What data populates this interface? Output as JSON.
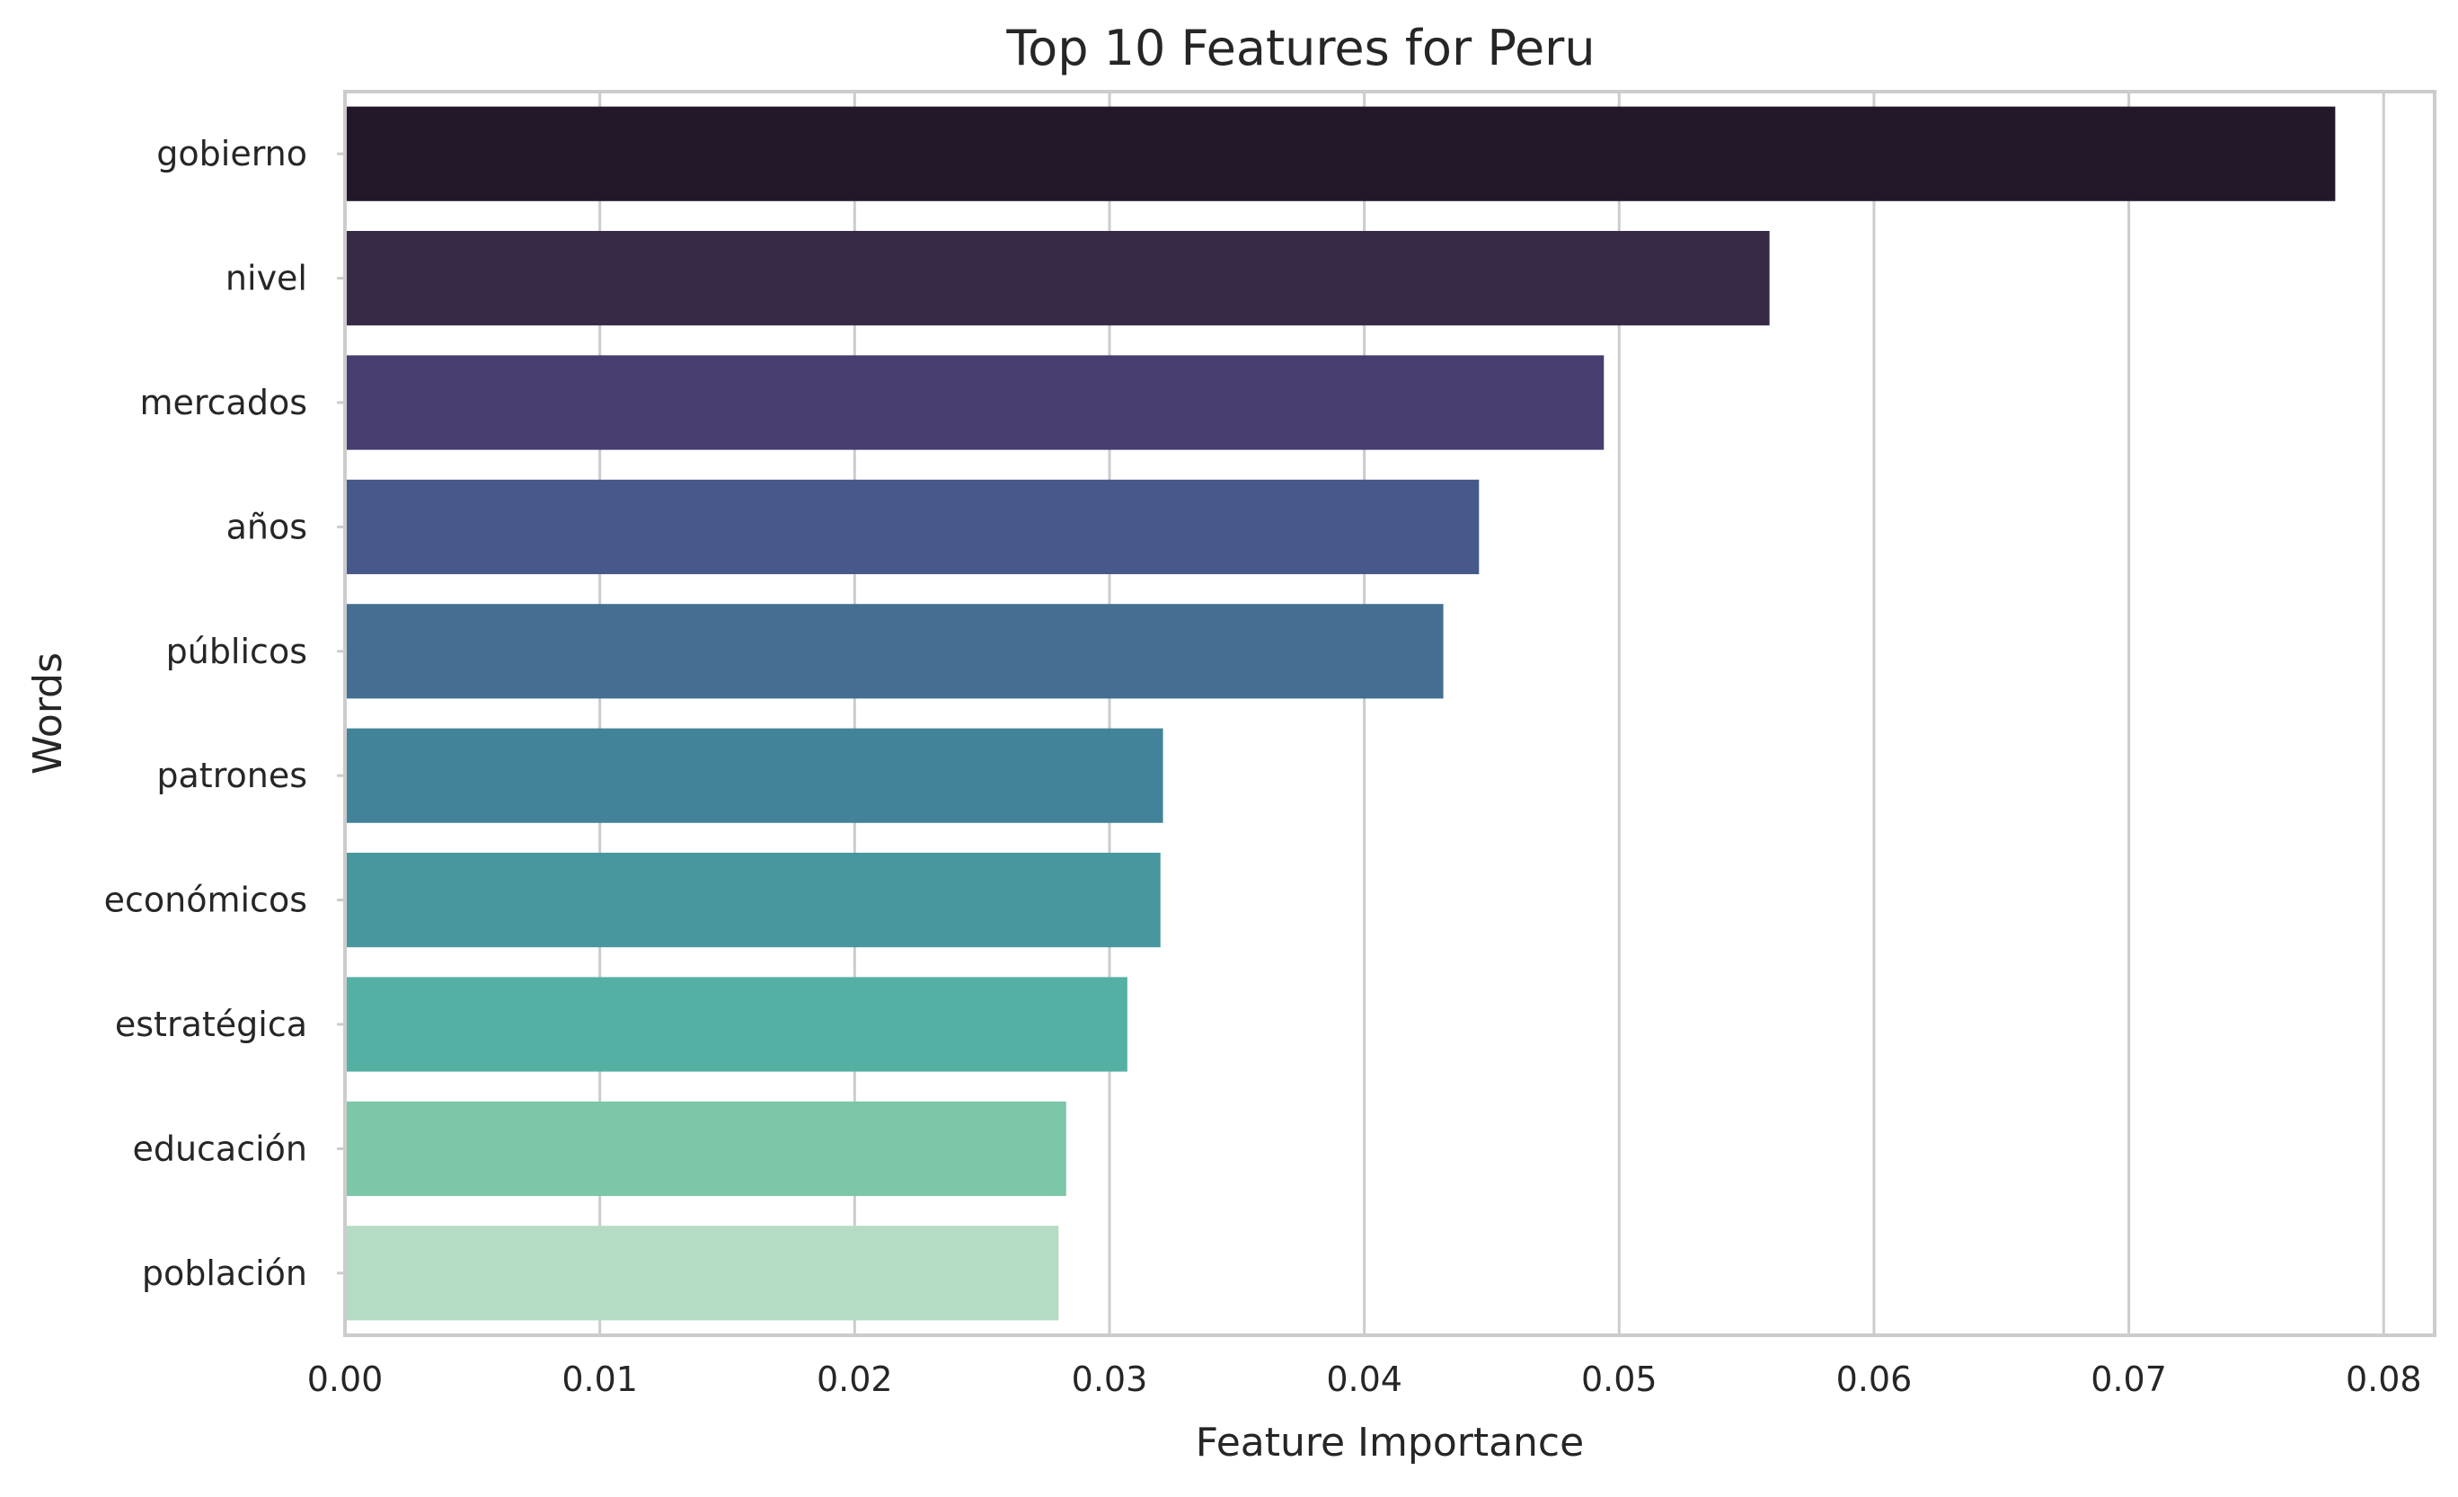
{
  "chart_data": {
    "type": "bar",
    "orientation": "horizontal",
    "title": "Top 10 Features for Peru",
    "xlabel": "Feature Importance",
    "ylabel": "Words",
    "categories": [
      "gobierno",
      "nivel",
      "mercados",
      "años",
      "públicos",
      "patrones",
      "económicos",
      "estratégica",
      "educación",
      "población"
    ],
    "values": [
      0.0781,
      0.0559,
      0.0494,
      0.0445,
      0.0431,
      0.0321,
      0.032,
      0.0307,
      0.0283,
      0.028
    ],
    "colors": [
      "#231829",
      "#372a47",
      "#473d6f",
      "#47598a",
      "#446e92",
      "#428399",
      "#47979d",
      "#55b0a4",
      "#7bc7a8",
      "#b3dcc3"
    ],
    "xlim": [
      0,
      0.082
    ],
    "xticks": [
      0.0,
      0.01,
      0.02,
      0.03,
      0.04,
      0.05,
      0.06,
      0.07,
      0.08
    ],
    "xtick_labels": [
      "0.00",
      "0.01",
      "0.02",
      "0.03",
      "0.04",
      "0.05",
      "0.06",
      "0.07",
      "0.08"
    ],
    "grid": true,
    "legend": "none"
  }
}
